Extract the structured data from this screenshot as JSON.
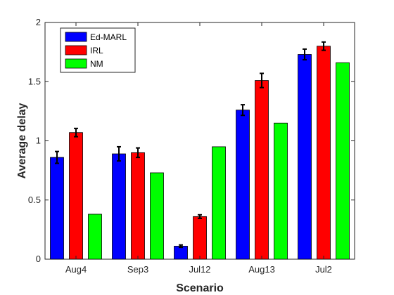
{
  "chart_data": {
    "type": "bar",
    "title": "",
    "xlabel": "Scenario",
    "ylabel": "Average delay",
    "categories": [
      "Aug4",
      "Sep3",
      "Jul12",
      "Aug13",
      "Jul2"
    ],
    "ylim": [
      0,
      2
    ],
    "yticks": [
      0,
      0.5,
      1,
      1.5,
      2
    ],
    "ytick_labels": [
      "0",
      "0.5",
      "1",
      "1.5",
      "2"
    ],
    "grid": false,
    "legend_position": "top-left",
    "series": [
      {
        "name": "Ed-MARL",
        "color": "#0000ff",
        "values": [
          0.86,
          0.89,
          0.11,
          1.26,
          1.73
        ],
        "errors": [
          0.05,
          0.06,
          0.01,
          0.045,
          0.045
        ]
      },
      {
        "name": "IRL",
        "color": "#ff0000",
        "values": [
          1.07,
          0.9,
          0.36,
          1.51,
          1.8
        ],
        "errors": [
          0.035,
          0.04,
          0.015,
          0.06,
          0.035
        ]
      },
      {
        "name": "NM",
        "color": "#00ff00",
        "values": [
          0.38,
          0.73,
          0.95,
          1.15,
          1.66
        ],
        "errors": [
          null,
          null,
          null,
          null,
          null
        ]
      }
    ]
  }
}
